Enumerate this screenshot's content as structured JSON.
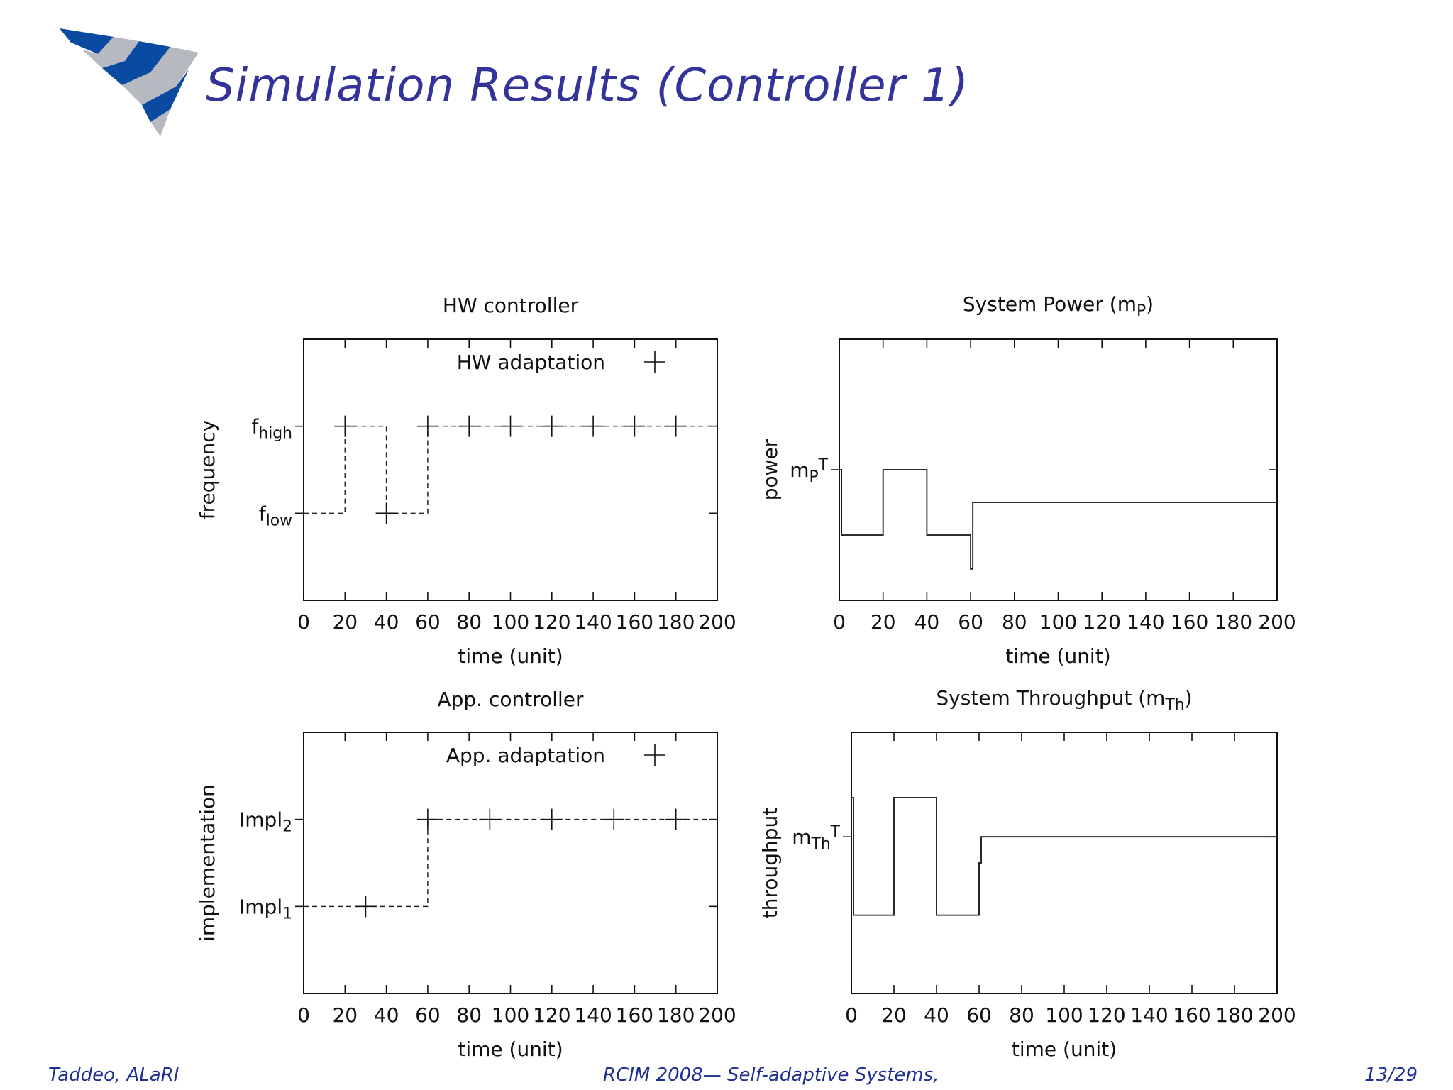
{
  "slide": {
    "title": "Simulation Results (Controller 1)",
    "footer_left": "Taddeo, ALaRI",
    "footer_center": "RCIM 2008— Self-adaptive Systems,",
    "footer_right": "13/29"
  },
  "colors": {
    "title": "#33339a",
    "footer": "#1f2f8f",
    "logo_blue": "#0a4aa0",
    "logo_gray": "#b6b9c0"
  },
  "chart_data": [
    {
      "type": "step",
      "title_main": "HW controller",
      "xlabel": "time (unit)",
      "ylabel": "frequency",
      "xlim": [
        0,
        200
      ],
      "ylim": [
        0,
        3
      ],
      "xticks": [
        "0",
        "20",
        "40",
        "60",
        "80",
        "100",
        "120",
        "140",
        "160",
        "180",
        "200"
      ],
      "yticks": [
        {
          "value": 1,
          "base": "f",
          "sub": "low"
        },
        {
          "value": 2,
          "base": "f",
          "sub": "high"
        }
      ],
      "legend": {
        "label": "HW adaptation",
        "position": "top-right"
      },
      "series": [
        {
          "name": "HW adaptation",
          "style": "dashed-step",
          "x": [
            0,
            20,
            40,
            60,
            80,
            100,
            120,
            140,
            160,
            180,
            200
          ],
          "y": [
            1,
            2,
            1,
            2,
            2,
            2,
            2,
            2,
            2,
            2,
            2
          ]
        }
      ],
      "markers": {
        "x": [
          20,
          40,
          60,
          80,
          100,
          120,
          140,
          160,
          180
        ],
        "y": [
          2,
          1,
          2,
          2,
          2,
          2,
          2,
          2,
          2
        ]
      }
    },
    {
      "type": "step",
      "title_main": "System Power (m",
      "title_sub": "P",
      "title_end": ")",
      "xlabel": "time (unit)",
      "ylabel": "power",
      "xlim": [
        0,
        200
      ],
      "ylim": [
        0,
        1
      ],
      "xticks": [
        "0",
        "20",
        "40",
        "60",
        "80",
        "100",
        "120",
        "140",
        "160",
        "180",
        "200"
      ],
      "yticks": [
        {
          "value": 0.5,
          "base": "m",
          "sub": "P",
          "sup": "T"
        }
      ],
      "series": [
        {
          "name": "power",
          "style": "solid-step",
          "x": [
            0,
            1,
            1,
            20,
            20,
            40,
            40,
            60,
            60,
            61,
            61,
            200
          ],
          "y": [
            0.5,
            0.5,
            0.25,
            0.25,
            0.5,
            0.5,
            0.25,
            0.25,
            0.12,
            0.12,
            0.375,
            0.375
          ]
        }
      ]
    },
    {
      "type": "step",
      "title_main": "App. controller",
      "xlabel": "time (unit)",
      "ylabel": "implementation",
      "xlim": [
        0,
        200
      ],
      "ylim": [
        0,
        3
      ],
      "xticks": [
        "0",
        "20",
        "40",
        "60",
        "80",
        "100",
        "120",
        "140",
        "160",
        "180",
        "200"
      ],
      "yticks": [
        {
          "value": 1,
          "base": "Impl",
          "sub": "1"
        },
        {
          "value": 2,
          "base": "Impl",
          "sub": "2"
        }
      ],
      "legend": {
        "label": "App. adaptation",
        "position": "top-right"
      },
      "series": [
        {
          "name": "App. adaptation",
          "style": "dashed-step",
          "x": [
            0,
            30,
            60,
            90,
            120,
            150,
            180,
            200
          ],
          "y": [
            1,
            1,
            2,
            2,
            2,
            2,
            2,
            2
          ]
        }
      ],
      "markers": {
        "x": [
          30,
          60,
          90,
          120,
          150,
          180
        ],
        "y": [
          1,
          2,
          2,
          2,
          2,
          2
        ]
      }
    },
    {
      "type": "step",
      "title_main": "System Throughput (m",
      "title_sub": "Th",
      "title_end": ")",
      "xlabel": "time (unit)",
      "ylabel": "throughput",
      "xlim": [
        0,
        200
      ],
      "ylim": [
        0,
        1
      ],
      "xticks": [
        "0",
        "20",
        "40",
        "60",
        "80",
        "100",
        "120",
        "140",
        "160",
        "180",
        "200"
      ],
      "yticks": [
        {
          "value": 0.6,
          "base": "m",
          "sub": "Th",
          "sup": "T"
        }
      ],
      "series": [
        {
          "name": "throughput",
          "style": "solid-step",
          "x": [
            0,
            1,
            1,
            20,
            20,
            40,
            40,
            60,
            60,
            61,
            61,
            200
          ],
          "y": [
            0.75,
            0.75,
            0.3,
            0.3,
            0.75,
            0.75,
            0.3,
            0.3,
            0.5,
            0.5,
            0.6,
            0.6
          ]
        }
      ]
    }
  ]
}
